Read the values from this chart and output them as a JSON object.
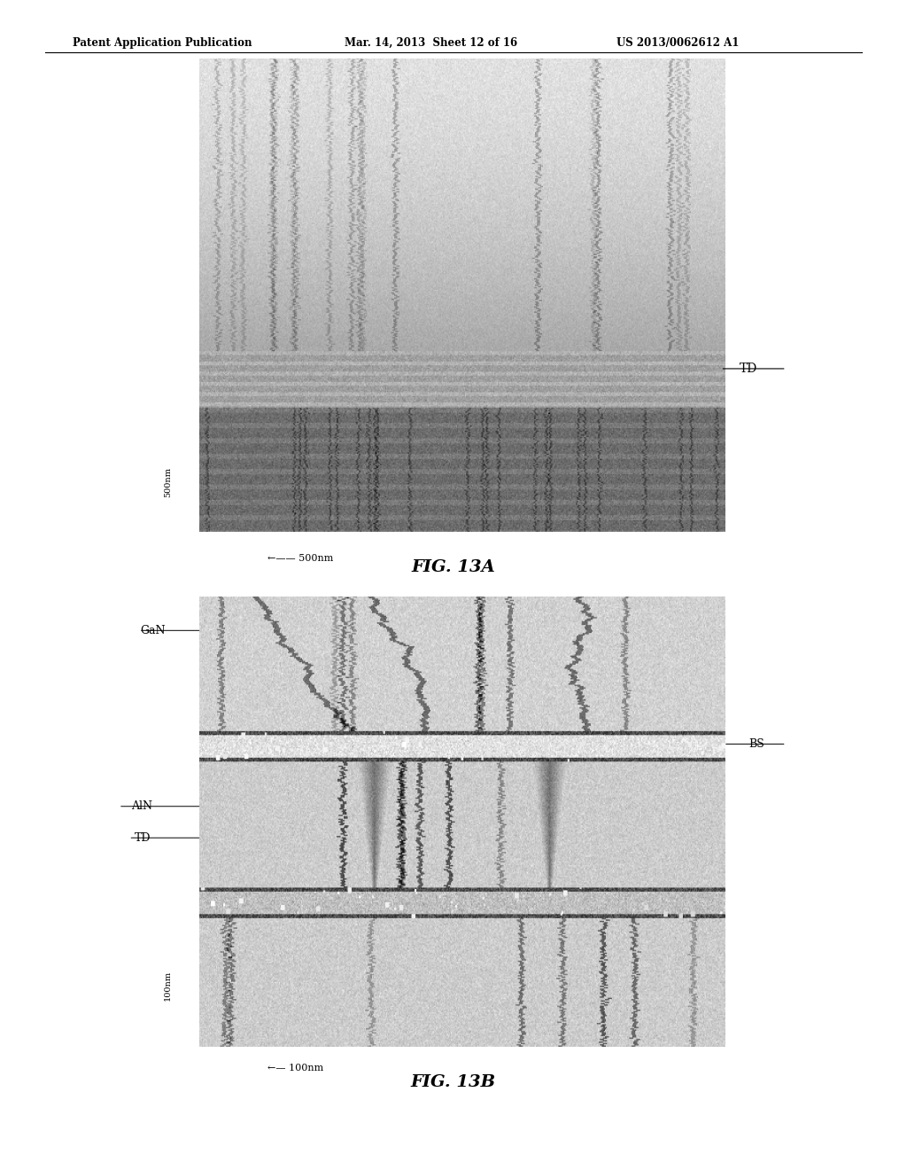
{
  "header_left": "Patent Application Publication",
  "header_mid": "Mar. 14, 2013  Sheet 12 of 16",
  "header_right": "US 2013/0062612 A1",
  "fig_a_label": "FIG. 13A",
  "fig_b_label": "FIG. 13B",
  "fig_a_td_label": "TD",
  "fig_b_gan_label": "GaN",
  "fig_b_aln_label": "AlN",
  "fig_b_td_label": "TD",
  "fig_b_bs_label": "BS",
  "fig_a_scale_v": "500nm",
  "fig_a_scale_h": "500nm",
  "fig_b_scale_v": "100nm",
  "fig_b_scale_h": "100nm",
  "bg_color": "#ffffff"
}
